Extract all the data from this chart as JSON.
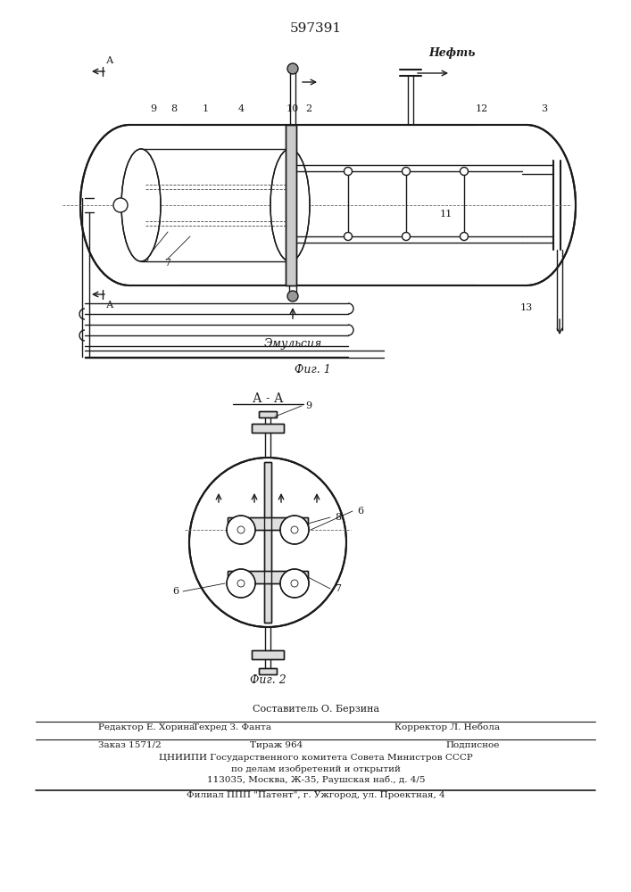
{
  "patent_number": "597391",
  "fig1_caption": "Фиг. 1",
  "fig2_caption": "Фиг. 2",
  "section_label": "А - А",
  "neft_label": "Нефть",
  "emulsiya_label": "Эмульсия",
  "footer_line1": "Составитель О. Берзина",
  "footer_line2_left": "Редактор Е. Хорина",
  "footer_line2_mid": "Техред З. Фанта",
  "footer_line2_right": "Корректор Л. Небола",
  "footer_line3_left": "Заказ 1571/2",
  "footer_line3_mid": "Тираж 964",
  "footer_line3_right": "Подписное",
  "footer_line4": "ЦНИИПИ Государственного комитета Совета Министров СССР",
  "footer_line5": "по делам изобретений и открытий",
  "footer_line6": "113035, Москва, Ж-35, Раушская наб., д. 4/5",
  "footer_line7": "Филиал ППП \"Патент\", г. Ужгород, ул. Проектная, 4",
  "bg_color": "#ffffff",
  "line_color": "#1a1a1a",
  "font_size_patent": 11,
  "font_size_labels": 8,
  "font_size_footer": 7.5
}
